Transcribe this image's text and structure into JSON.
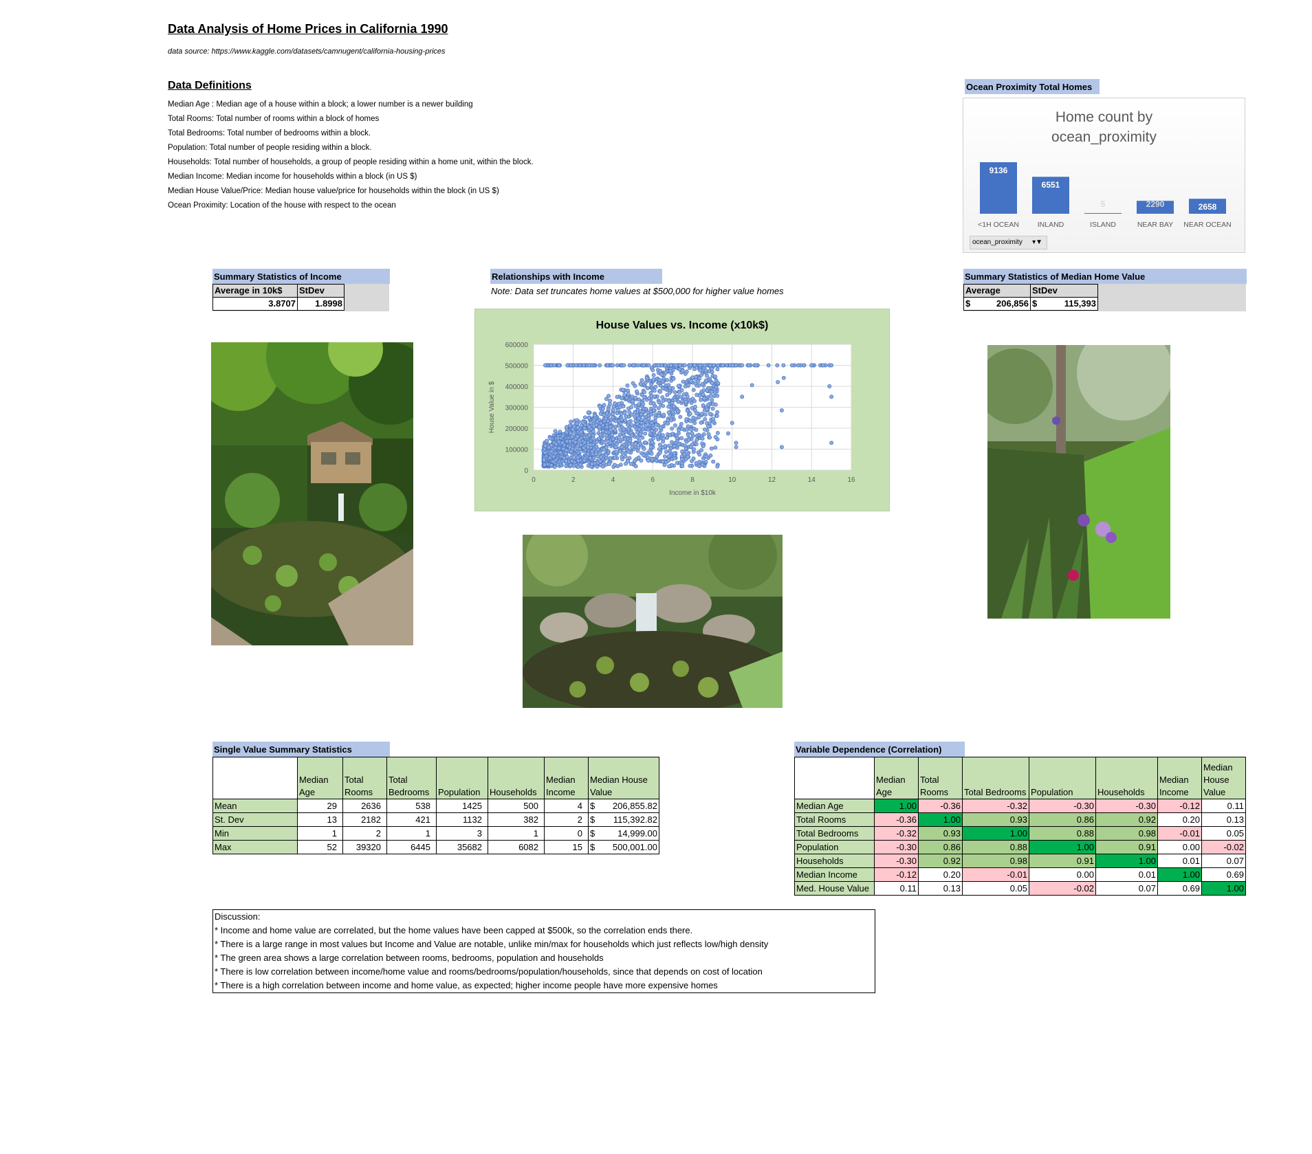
{
  "title": "Data Analysis of Home Prices in California 1990",
  "source": "data source: https://www.kaggle.com/datasets/camnugent/california-housing-prices",
  "definitions": {
    "heading": "Data Definitions",
    "items": [
      "Median Age : Median age of a house within a block; a lower number is a newer building",
      "Total Rooms: Total number of rooms within a block of homes",
      "Total Bedrooms:  Total number of bedrooms within a block.",
      "Population:  Total number of people residing within a block.",
      "Households: Total number of households, a group of people residing within a home unit, within the block.",
      "Median Income: Median income for households within a block (in US $)",
      "Median House Value/Price: Median house value/price for households within the block (in US $)",
      "Ocean Proximity:  Location of the house with respect to the ocean"
    ]
  },
  "ocean": {
    "heading": "Ocean Proximity Total Homes",
    "filter_label": "ocean_proximity",
    "filter_icon": "filter-dropdown-icon"
  },
  "income_stats": {
    "heading": "Summary Statistics of Income",
    "col1": "Average in 10k$",
    "col2": "StDev",
    "avg": "3.8707",
    "stdev": "1.8998"
  },
  "relationships": {
    "heading": "Relationships with Income",
    "note": "Note: Data set truncates home values at $500,000 for higher value homes"
  },
  "home_value_stats": {
    "heading": "Summary Statistics of Median Home Value",
    "col1": "Average",
    "col2": "StDev",
    "cur1": "$",
    "avg": "206,856",
    "cur2": "$",
    "stdev": "115,393"
  },
  "single_stats": {
    "heading": "Single Value Summary Statistics",
    "columns": [
      "Median Age",
      "Total Rooms",
      "Total Bedrooms",
      "Population",
      "Households",
      "Median Income",
      "Median House Value"
    ],
    "rows": [
      {
        "label": "Mean",
        "values": [
          "29",
          "2636",
          "538",
          "1425",
          "500",
          "4"
        ],
        "cur": "$",
        "value": "206,855.82"
      },
      {
        "label": "St. Dev",
        "values": [
          "13",
          "2182",
          "421",
          "1132",
          "382",
          "2"
        ],
        "cur": "$",
        "value": "115,392.82"
      },
      {
        "label": "Min",
        "values": [
          "1",
          "2",
          "1",
          "3",
          "1",
          "0"
        ],
        "cur": "$",
        "value": "14,999.00"
      },
      {
        "label": "Max",
        "values": [
          "52",
          "39320",
          "6445",
          "35682",
          "6082",
          "15"
        ],
        "cur": "$",
        "value": "500,001.00"
      }
    ]
  },
  "correlation": {
    "heading": "Variable Dependence (Correlation)",
    "columns": [
      "Median Age",
      "Total Rooms",
      "Total Bedrooms",
      "Population",
      "Households",
      "Median Income",
      "Median House Value"
    ],
    "rows": [
      {
        "label": "Median Age",
        "values": [
          "1.00",
          "-0.36",
          "-0.32",
          "-0.30",
          "-0.30",
          "-0.12",
          "0.11"
        ]
      },
      {
        "label": "Total Rooms",
        "values": [
          "-0.36",
          "1.00",
          "0.93",
          "0.86",
          "0.92",
          "0.20",
          "0.13"
        ]
      },
      {
        "label": "Total Bedrooms",
        "values": [
          "-0.32",
          "0.93",
          "1.00",
          "0.88",
          "0.98",
          "-0.01",
          "0.05"
        ]
      },
      {
        "label": "Population",
        "values": [
          "-0.30",
          "0.86",
          "0.88",
          "1.00",
          "0.91",
          "0.00",
          "-0.02"
        ]
      },
      {
        "label": "Households",
        "values": [
          "-0.30",
          "0.92",
          "0.98",
          "0.91",
          "1.00",
          "0.01",
          "0.07"
        ]
      },
      {
        "label": "Median Income",
        "values": [
          "-0.12",
          "0.20",
          "-0.01",
          "0.00",
          "0.01",
          "1.00",
          "0.69"
        ]
      },
      {
        "label": "Med. House Value",
        "values": [
          "0.11",
          "0.13",
          "0.05",
          "-0.02",
          "0.07",
          "0.69",
          "1.00"
        ]
      }
    ]
  },
  "discussion": [
    "Discussion:",
    "* Income and home value are correlated, but the home values have been capped at $500k, so the correlation ends there.",
    "* There is a large range in most values but Income and Value are notable, unlike min/max for households which just reflects low/high density",
    "* The green area shows a large correlation between rooms, bedrooms, population and households",
    "* There is low correlation between income/home value and rooms/bedrooms/population/households, since that depends on cost of location",
    "* There is a high correlation between income and home value, as expected; higher income people have more expensive homes"
  ],
  "colors": {
    "band": "#b4c6e7",
    "bar": "#4472c4",
    "chart_bg": "#c6e0b4",
    "dot": "#8eaadb",
    "strong_green": "#00b050",
    "mid_green": "#a9d08e",
    "light_green": "#c6e0b4",
    "pink": "#ffc7ce"
  },
  "chart_data": [
    {
      "type": "bar",
      "title": "Home count by ocean_proximity",
      "categories": [
        "<1H OCEAN",
        "INLAND",
        "ISLAND",
        "NEAR BAY",
        "NEAR OCEAN"
      ],
      "values": [
        9136,
        6551,
        5,
        2290,
        2658
      ],
      "ylim": [
        0,
        9136
      ]
    },
    {
      "type": "scatter",
      "title": "House Values vs. Income (x10k$)",
      "xlabel": "Income in $10k",
      "ylabel": "House Value in $",
      "xlim": [
        0,
        16
      ],
      "ylim": [
        0,
        600000
      ],
      "xticks": [
        "0",
        "2",
        "4",
        "6",
        "8",
        "10",
        "12",
        "14",
        "16"
      ],
      "yticks": [
        "0",
        "100000",
        "200000",
        "300000",
        "400000",
        "500000",
        "600000"
      ],
      "cap_value": 500001,
      "outliers": [
        {
          "x": 15.0,
          "y": 500001
        },
        {
          "x": 14.9,
          "y": 400000
        },
        {
          "x": 15.0,
          "y": 350000
        },
        {
          "x": 15.0,
          "y": 130000
        },
        {
          "x": 12.5,
          "y": 110000
        },
        {
          "x": 12.5,
          "y": 285000
        },
        {
          "x": 12.3,
          "y": 420000
        },
        {
          "x": 12.6,
          "y": 440000
        },
        {
          "x": 10.2,
          "y": 110000
        },
        {
          "x": 10.2,
          "y": 130000
        },
        {
          "x": 10.0,
          "y": 225000
        },
        {
          "x": 9.8,
          "y": 175000
        },
        {
          "x": 7.6,
          "y": 75000
        },
        {
          "x": 10.5,
          "y": 350000
        },
        {
          "x": 11.0,
          "y": 405000
        }
      ]
    }
  ]
}
